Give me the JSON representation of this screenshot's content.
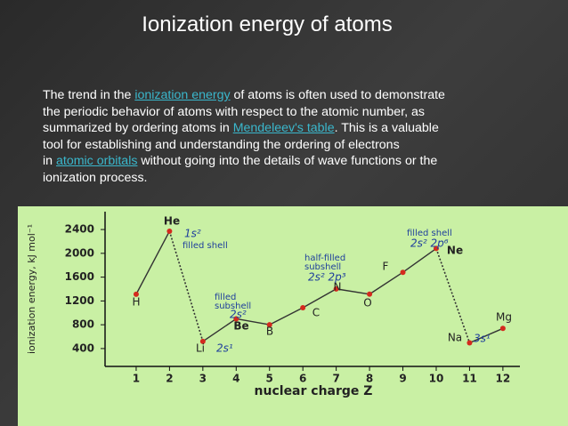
{
  "slide_title": "Ionization energy of atoms",
  "paragraph": [
    [
      {
        "text": "The trend in the ",
        "link": false
      },
      {
        "text": "ionization energy",
        "link": true
      },
      {
        "text": " of atoms is often used to demonstrate",
        "link": false
      }
    ],
    [
      {
        "text": "the periodic behavior of atoms with respect to the atomic number, as",
        "link": false
      }
    ],
    [
      {
        "text": "summarized by ordering atoms in ",
        "link": false
      },
      {
        "text": "Mendeleev's table",
        "link": true
      },
      {
        "text": ". This is a valuable",
        "link": false
      }
    ],
    [
      {
        "text": "tool for establishing and understanding the ordering of electrons",
        "link": false
      }
    ],
    [
      {
        "text": "in ",
        "link": false
      },
      {
        "text": "atomic orbitals",
        "link": true
      },
      {
        "text": " without going into the details of wave functions or the",
        "link": false
      }
    ],
    [
      {
        "text": "ionization process.",
        "link": false
      }
    ]
  ],
  "chart_data": {
    "type": "line",
    "x_label": "nuclear charge Z",
    "y_label": "ionization energy, kJ mol⁻¹",
    "x": [
      1,
      2,
      3,
      4,
      5,
      6,
      7,
      8,
      9,
      10,
      11,
      12
    ],
    "point_labels": [
      "H",
      "He",
      "Li",
      "Be",
      "B",
      "C",
      "N",
      "O",
      "F",
      "Ne",
      "Na",
      "Mg"
    ],
    "series": [
      {
        "color": "#d42a1e",
        "values": [
          1312,
          2372,
          520,
          900,
          801,
          1086,
          1402,
          1314,
          1681,
          2081,
          496,
          738
        ]
      }
    ],
    "xlim": [
      0,
      12.5
    ],
    "xticks": [
      1,
      2,
      3,
      4,
      5,
      6,
      7,
      8,
      9,
      10,
      11,
      12
    ],
    "ylim": [
      100,
      2700
    ],
    "yticks": [
      400,
      800,
      1200,
      1600,
      2000,
      2400
    ],
    "annotations": [
      "1s²",
      "filled shell",
      "filled",
      "subshell",
      "2s²",
      "half-filled",
      "subshell",
      "2s² 2p³",
      "filled shell",
      "2s² 2p⁶",
      "2s¹",
      "3s¹"
    ]
  }
}
